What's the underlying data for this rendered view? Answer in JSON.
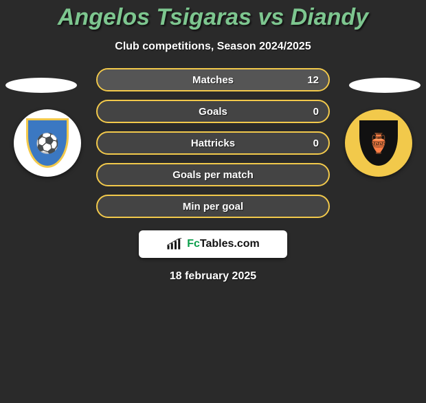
{
  "header": {
    "title_color": "#7dc68f",
    "title": "Angelos Tsigaras vs Diandy",
    "subtitle": "Club competitions, Season 2024/2025"
  },
  "left": {
    "name_pill_bg": "#ffffff",
    "badge_bg": "#ffffff",
    "crest_bg": "#3b78c2",
    "crest_border": "#f2c94b",
    "crest_glyph": "⚽"
  },
  "right": {
    "name_pill_bg": "#ffffff",
    "badge_bg": "#f2c94b",
    "crest_bg": "#111111",
    "crest_border": "#f2c94b",
    "crest_glyph": "🏺"
  },
  "pill_border": "#f2c94b",
  "pill_fill": "#444444",
  "pill_alt_right_fill": "#555555",
  "brand_text_a": "Fc",
  "brand_text_b": "Tables.com",
  "footer_date": "18 february 2025",
  "stats": [
    {
      "label": "Matches",
      "value": "12",
      "right_fill_pct": 100
    },
    {
      "label": "Goals",
      "value": "0",
      "right_fill_pct": 0
    },
    {
      "label": "Hattricks",
      "value": "0",
      "right_fill_pct": 0
    },
    {
      "label": "Goals per match",
      "value": "",
      "right_fill_pct": 0
    },
    {
      "label": "Min per goal",
      "value": "",
      "right_fill_pct": 0
    }
  ]
}
